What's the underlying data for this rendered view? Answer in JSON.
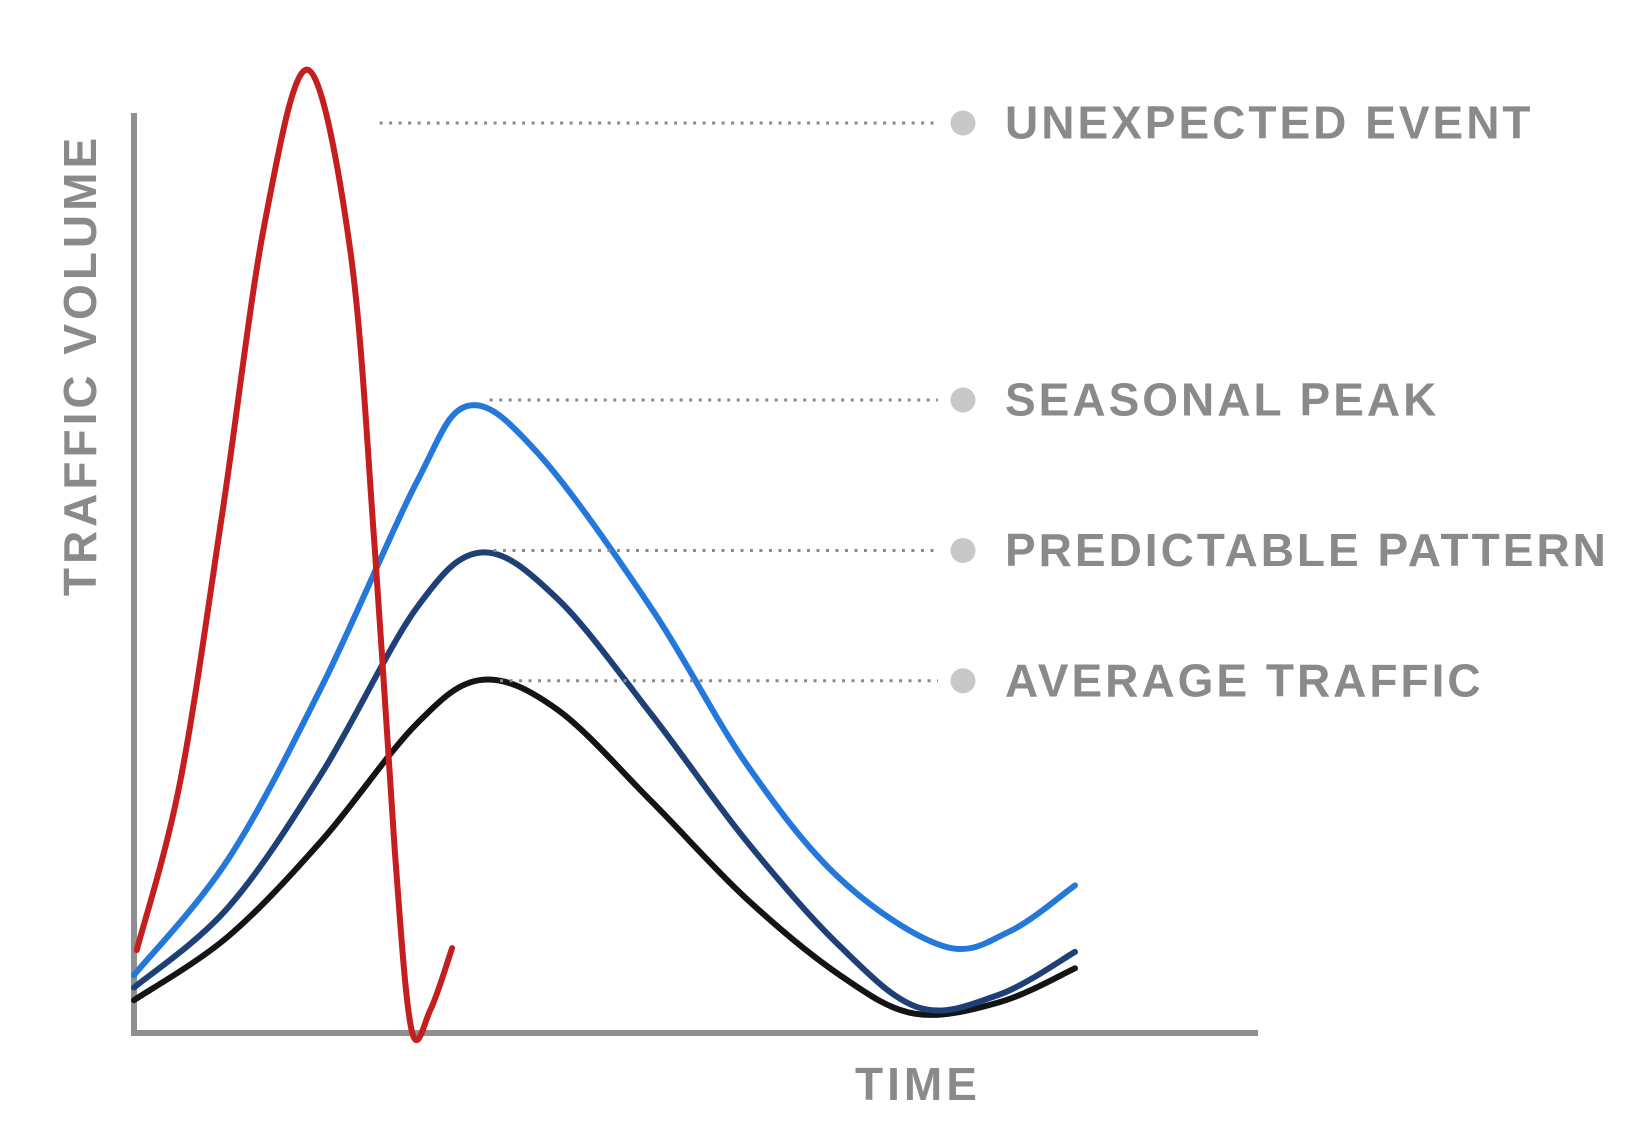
{
  "chart_data": {
    "type": "line",
    "title": "",
    "xlabel": "TIME",
    "ylabel": "TRAFFIC VOLUME",
    "x_range": [
      0,
      10
    ],
    "y_range": [
      0,
      100
    ],
    "grid": false,
    "legend_position": "right-annotations",
    "axis_color": "#8f8f8f",
    "leader_line_color": "#8a8a8a",
    "annotation_marker_color": "#c8c8c8",
    "annotation_text_color": "#8a8a8a",
    "series": [
      {
        "id": "average-traffic",
        "name": "AVERAGE TRAFFIC",
        "color": "#141414",
        "points": [
          [
            0,
            3.4
          ],
          [
            1,
            10
          ],
          [
            2,
            20
          ],
          [
            3,
            32
          ],
          [
            3.7,
            36.6
          ],
          [
            4.5,
            33.5
          ],
          [
            5.5,
            24
          ],
          [
            6.5,
            14
          ],
          [
            7.5,
            6
          ],
          [
            8.3,
            2
          ],
          [
            9.2,
            3.2
          ],
          [
            10,
            6.7
          ]
        ]
      },
      {
        "id": "predictable-pattern",
        "name": "PREDICTABLE PATTERN",
        "color": "#1f4077",
        "points": [
          [
            0,
            4.7
          ],
          [
            1,
            13
          ],
          [
            2,
            27
          ],
          [
            3,
            44
          ],
          [
            3.7,
            49.8
          ],
          [
            4.5,
            45
          ],
          [
            5.5,
            33
          ],
          [
            6.5,
            20
          ],
          [
            7.5,
            9
          ],
          [
            8.35,
            2.6
          ],
          [
            9.2,
            4
          ],
          [
            10,
            8.4
          ]
        ]
      },
      {
        "id": "seasonal-peak",
        "name": "SEASONAL PEAK",
        "color": "#2478dc",
        "points": [
          [
            0,
            6
          ],
          [
            1,
            18
          ],
          [
            2,
            36
          ],
          [
            3,
            57
          ],
          [
            3.55,
            65
          ],
          [
            4.3,
            60
          ],
          [
            5.5,
            44
          ],
          [
            6.5,
            28
          ],
          [
            7.5,
            16
          ],
          [
            8.6,
            9
          ],
          [
            9.3,
            10.5
          ],
          [
            10,
            15.3
          ]
        ]
      },
      {
        "id": "unexpected-event",
        "name": "UNEXPECTED EVENT",
        "color": "#c41e1e",
        "points": [
          [
            0.03,
            8.6
          ],
          [
            0.49,
            26
          ],
          [
            0.94,
            54
          ],
          [
            1.39,
            84
          ],
          [
            1.85,
            99.8
          ],
          [
            2.3,
            81
          ],
          [
            2.56,
            50
          ],
          [
            2.77,
            19
          ],
          [
            2.95,
            0.3
          ],
          [
            3.15,
            2.4
          ],
          [
            3.38,
            8.8
          ]
        ]
      }
    ],
    "annotations": [
      {
        "id": "unexpected-event",
        "label": "UNEXPECTED EVENT",
        "t_start": 2.61,
        "v": 94.3
      },
      {
        "id": "seasonal-peak",
        "label": "SEASONAL PEAK",
        "t_start": 3.78,
        "v": 65.6
      },
      {
        "id": "predictable-pattern",
        "label": "PREDICTABLE PATTERN",
        "t_start": 3.82,
        "v": 50.0
      },
      {
        "id": "average-traffic",
        "label": "AVERAGE TRAFFIC",
        "t_start": 3.89,
        "v": 36.5
      }
    ]
  }
}
